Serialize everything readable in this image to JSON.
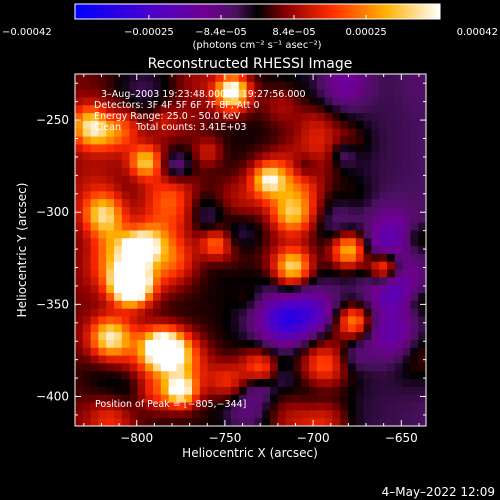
{
  "chart_data": {
    "type": "heatmap",
    "title": "Reconstructed RHESSI Image",
    "xlabel": "Heliocentric X (arcsec)",
    "ylabel": "Heliocentric Y (arcsec)",
    "xlim": [
      -835,
      -636
    ],
    "ylim": [
      -416,
      -225
    ],
    "x_ticks": [
      -800,
      -750,
      -700,
      -650
    ],
    "x_tick_labels": [
      "−800",
      "−750",
      "−700",
      "−650"
    ],
    "y_ticks": [
      -400,
      -350,
      -300,
      -250
    ],
    "y_tick_labels": [
      "−400",
      "−350",
      "−300",
      "−250"
    ],
    "colorbar": {
      "range": [
        -0.00042,
        0.00042
      ],
      "ticks": [
        -0.00042,
        -0.00025,
        -8.4e-05,
        8.4e-05,
        0.00025,
        0.00042
      ],
      "tick_labels": [
        "−0.00042",
        "−0.00025",
        "−8.4e−05",
        "8.4e−05",
        "0.00025",
        "0.00042"
      ],
      "unit_label": "(photons cm⁻² s⁻¹ asec⁻²)"
    },
    "info_lines": [
      "3–Aug–2003 19:23:48.000 to 19:27:56.000",
      "Detectors: 3F 4F 5F 6F 7F 8F, Att 0",
      "Energy Range: 25.0 – 50.0 keV",
      "Clean     Total counts: 3.41E+03"
    ],
    "peak_label": "Position of Peak = [−805,−344]",
    "peak": [
      -805,
      -344
    ],
    "grid_size": [
      45,
      45
    ],
    "colors": {
      "background": "#000000",
      "colormap": [
        "#0000ff",
        "#5000c8",
        "#700090",
        "#5a1a6e",
        "#000000",
        "#8a0000",
        "#ff2a00",
        "#ffb000",
        "#ffffff"
      ]
    }
  },
  "footer": {
    "timestamp": "4–May–2022 12:09"
  }
}
